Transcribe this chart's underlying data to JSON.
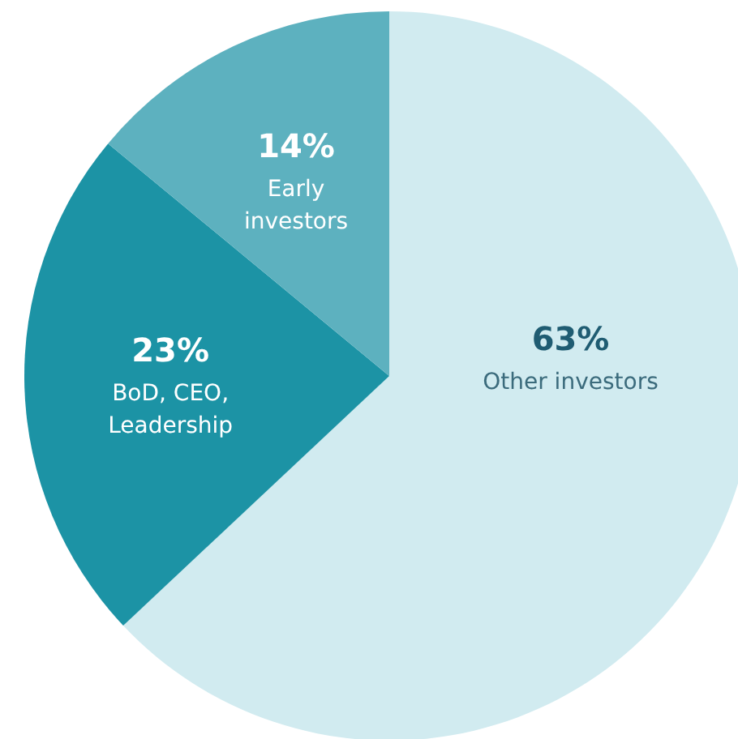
{
  "chart_data": {
    "type": "pie",
    "categories": [
      "Other investors",
      "BoD, CEO, Leadership",
      "Early investors"
    ],
    "values": [
      63,
      23,
      14
    ],
    "colors": [
      "#d1ebf0",
      "#1c93a5",
      "#5db1bf"
    ],
    "value_labels": [
      "63%",
      "23%",
      "14%"
    ]
  }
}
